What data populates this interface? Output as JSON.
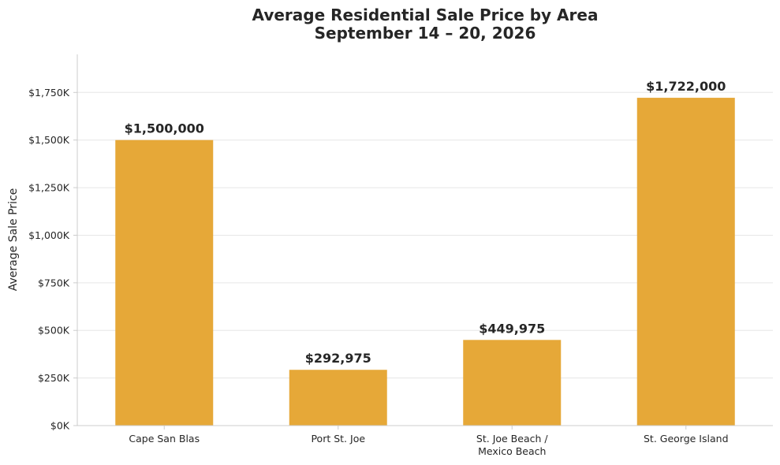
{
  "chart_data": {
    "type": "bar",
    "title": "Average Residential Sale Price by Area",
    "subtitle": "September 14 – 20, 2026",
    "xlabel": "",
    "ylabel": "Average Sale Price",
    "categories": [
      [
        "Cape San Blas"
      ],
      [
        "Port St. Joe"
      ],
      [
        "St. Joe Beach /",
        "Mexico Beach"
      ],
      [
        "St. George Island"
      ]
    ],
    "values": [
      1500000,
      292975,
      449975,
      1722000
    ],
    "value_labels": [
      "$1,500,000",
      "$292,975",
      "$449,975",
      "$1,722,000"
    ],
    "ylim": [
      0,
      1950000
    ],
    "yticks": [
      0,
      250000,
      500000,
      750000,
      1000000,
      1250000,
      1500000,
      1750000
    ],
    "ytick_labels": [
      "$0K",
      "$250K",
      "$500K",
      "$750K",
      "$1,000K",
      "$1,250K",
      "$1,500K",
      "$1,750K"
    ],
    "grid": "horizontal",
    "bar_color": "#E6A838",
    "gridline_color": "#E6E6E6",
    "axis_color": "#CCCCCC"
  }
}
